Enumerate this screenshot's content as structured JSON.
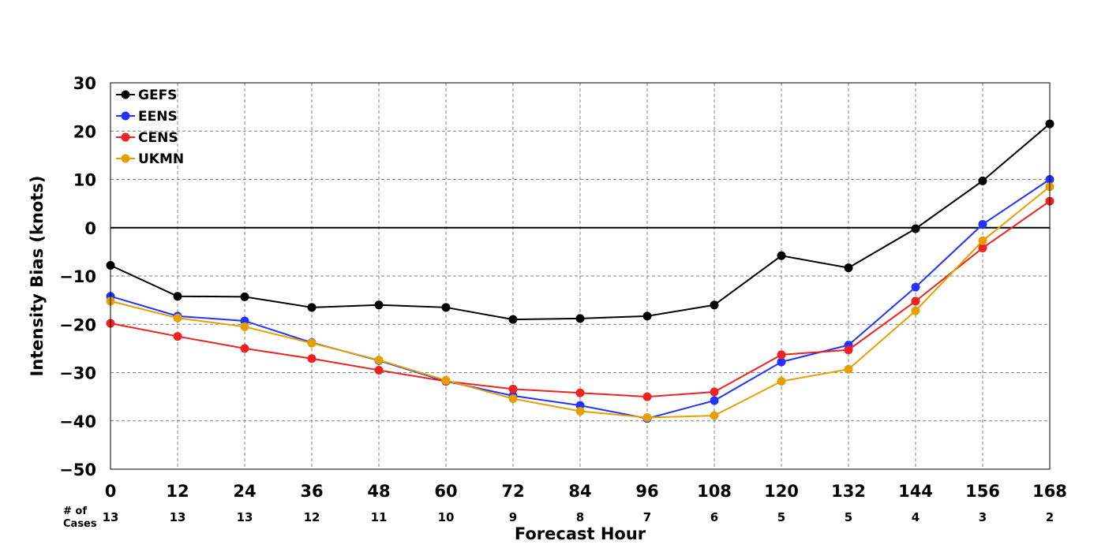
{
  "chart_data": {
    "type": "line",
    "title": "",
    "xlabel": "Forecast Hour",
    "ylabel": "Intensity Bias (knots)",
    "x": [
      0,
      12,
      24,
      36,
      48,
      60,
      72,
      84,
      96,
      108,
      120,
      132,
      144,
      156,
      168
    ],
    "xlim": [
      0,
      168
    ],
    "ylim": [
      -50,
      30
    ],
    "yticks": [
      30,
      20,
      10,
      0,
      -10,
      -20,
      -30,
      -40,
      -50
    ],
    "ytick_labels": [
      "30",
      "20",
      "10",
      "0",
      "−10",
      "−20",
      "−30",
      "−40",
      "−50"
    ],
    "grid": true,
    "legend_position": "top-left",
    "zero_line": true,
    "cases_label": "# of\nCases",
    "cases": [
      13,
      13,
      13,
      12,
      11,
      10,
      9,
      8,
      7,
      6,
      5,
      5,
      4,
      3,
      2
    ],
    "series": [
      {
        "name": "GEFS",
        "color": "#000000",
        "values": [
          -7.8,
          -14.2,
          -14.3,
          -16.5,
          -16.0,
          -16.5,
          -19.0,
          -18.8,
          -18.3,
          -16.0,
          -5.8,
          -8.3,
          -0.2,
          9.7,
          21.5
        ]
      },
      {
        "name": "EENS",
        "color": "#2233ff",
        "values": [
          -14.2,
          -18.3,
          -19.3,
          -23.8,
          -27.5,
          -31.8,
          -34.8,
          -36.8,
          -39.5,
          -35.8,
          -27.8,
          -24.3,
          -12.3,
          0.7,
          10.0
        ]
      },
      {
        "name": "CENS",
        "color": "#ee2222",
        "values": [
          -19.8,
          -22.5,
          -25.0,
          -27.1,
          -29.5,
          -31.8,
          -33.4,
          -34.2,
          -35.0,
          -34.0,
          -26.3,
          -25.3,
          -15.2,
          -4.2,
          5.5
        ]
      },
      {
        "name": "UKMN",
        "color": "#e69f00",
        "values": [
          -15.2,
          -18.7,
          -20.5,
          -23.9,
          -27.4,
          -31.6,
          -35.4,
          -38.0,
          -39.3,
          -38.9,
          -31.8,
          -29.3,
          -17.2,
          -2.7,
          8.5
        ]
      }
    ]
  }
}
